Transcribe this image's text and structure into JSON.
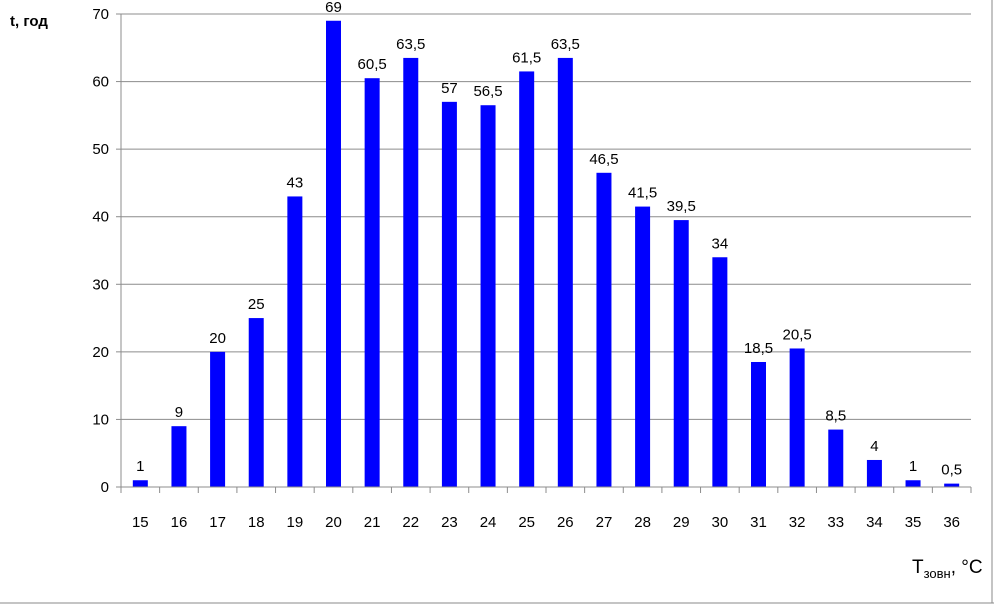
{
  "chart_data": {
    "type": "bar",
    "ylabel": "t, год",
    "xlabel_main": "T",
    "xlabel_sub": "зовн",
    "xlabel_unit": ", °C",
    "categories": [
      "15",
      "16",
      "17",
      "18",
      "19",
      "20",
      "21",
      "22",
      "23",
      "24",
      "25",
      "26",
      "27",
      "28",
      "29",
      "30",
      "31",
      "32",
      "33",
      "34",
      "35",
      "36"
    ],
    "values": [
      1,
      9,
      20,
      25,
      43,
      69,
      60.5,
      63.5,
      57,
      56.5,
      61.5,
      63.5,
      46.5,
      41.5,
      39.5,
      34,
      18.5,
      20.5,
      8.5,
      4,
      1,
      0.5
    ],
    "value_labels": [
      "1",
      "9",
      "20",
      "25",
      "43",
      "69",
      "60,5",
      "63,5",
      "57",
      "56,5",
      "61,5",
      "63,5",
      "46,5",
      "41,5",
      "39,5",
      "34",
      "18,5",
      "20,5",
      "8,5",
      "4",
      "1",
      "0,5"
    ],
    "ylim": [
      0,
      70
    ],
    "yticks": [
      "0",
      "10",
      "20",
      "30",
      "40",
      "50",
      "60",
      "70"
    ],
    "grid": true,
    "bar_color": "#0000ff"
  }
}
